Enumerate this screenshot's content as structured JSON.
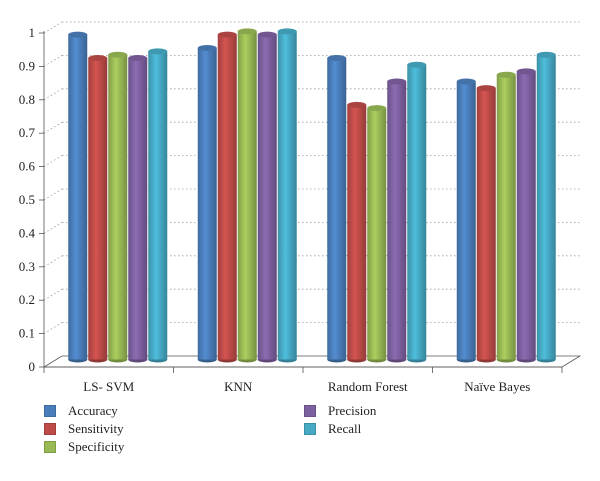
{
  "chart_data": {
    "type": "bar",
    "title": "",
    "xlabel": "",
    "ylabel": "",
    "categories": [
      "LS- SVM",
      "KNN",
      "Random Forest",
      "Naïve Bayes"
    ],
    "ylim": [
      0,
      1
    ],
    "yticks": [
      "0",
      "0.1",
      "0.2",
      "0.3",
      "0.4",
      "0.5",
      "0.6",
      "0.7",
      "0.8",
      "0.9",
      "1"
    ],
    "grid": true,
    "legend_position": "bottom-left",
    "series": [
      {
        "name": "Accuracy",
        "color": "#4a7ebb",
        "values": [
          0.98,
          0.94,
          0.91,
          0.84
        ]
      },
      {
        "name": "Sensitivity",
        "color": "#be4b48",
        "values": [
          0.91,
          0.98,
          0.77,
          0.82
        ]
      },
      {
        "name": "Specificity",
        "color": "#98b954",
        "values": [
          0.92,
          0.99,
          0.76,
          0.86
        ]
      },
      {
        "name": "Precision",
        "color": "#7d60a0",
        "values": [
          0.91,
          0.98,
          0.84,
          0.87
        ]
      },
      {
        "name": "Recall",
        "color": "#46aac5",
        "values": [
          0.93,
          0.99,
          0.89,
          0.92
        ]
      }
    ]
  }
}
